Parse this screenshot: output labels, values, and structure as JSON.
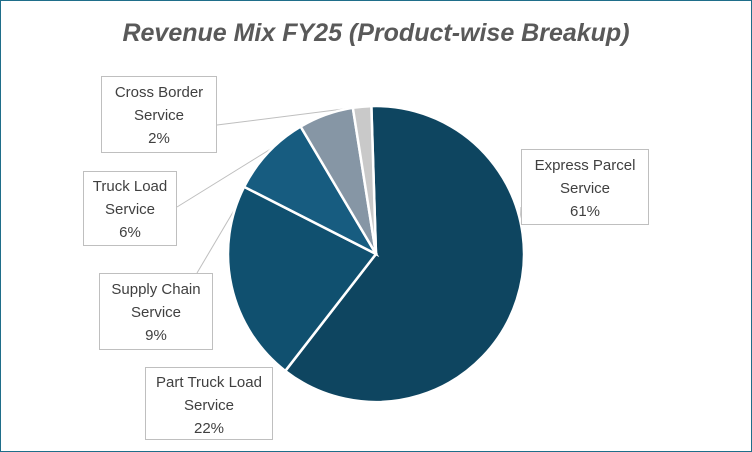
{
  "chart_data": {
    "type": "pie",
    "title": "Revenue Mix FY25 (Product-wise Breakup)",
    "slices": [
      {
        "name_line1": "Express Parcel",
        "name_line2": "Service",
        "value": 61,
        "value_label": "61%",
        "color": "#0e4560"
      },
      {
        "name_line1": "Part Truck Load",
        "name_line2": "Service",
        "value": 22,
        "value_label": "22%",
        "color": "#10506f"
      },
      {
        "name_line1": "Supply Chain",
        "name_line2": "Service",
        "value": 9,
        "value_label": "9%",
        "color": "#175c80"
      },
      {
        "name_line1": "Truck Load",
        "name_line2": "Service",
        "value": 6,
        "value_label": "6%",
        "color": "#8696a5"
      },
      {
        "name_line1": "Cross Border",
        "name_line2": "Service",
        "value": 2,
        "value_label": "2%",
        "color": "#c9c9c9"
      }
    ],
    "legend": "none",
    "data_labels": "outside-with-leader-lines"
  }
}
